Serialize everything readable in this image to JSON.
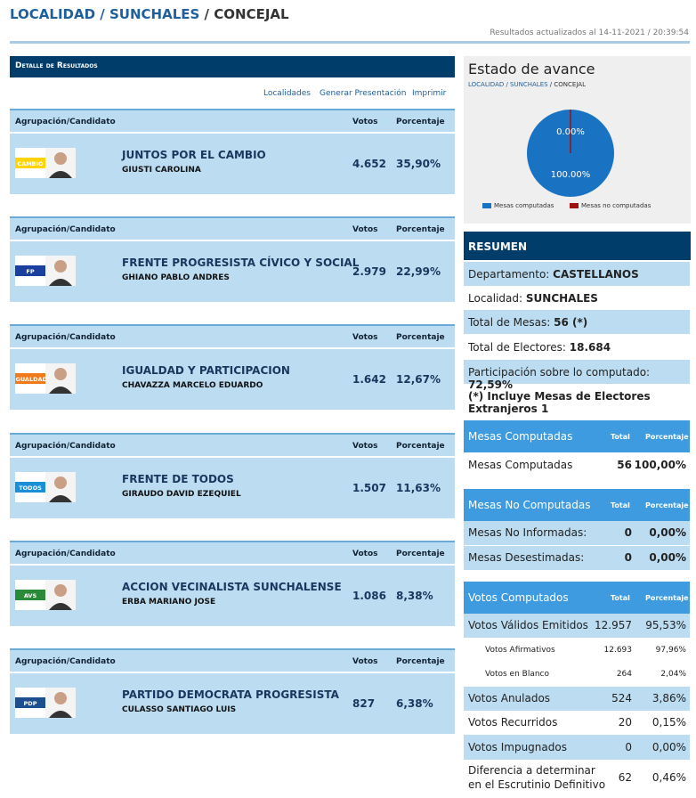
{
  "breadcrumb": {
    "part1": "LOCALIDAD",
    "sep1": " / ",
    "part2": "SUNCHALES",
    "sep2": " / ",
    "current": "CONCEJAL"
  },
  "updated": "Resultados actualizados al 14-11-2021 / 20:39:54",
  "detail": {
    "header": "Detalle de Resultados",
    "links": [
      "Localidades",
      "Generar Presentación",
      "Imprimir"
    ],
    "col_group": "Agrupación/Candidato",
    "col_votes": "Votos",
    "col_pct": "Porcentaje",
    "candidates": [
      {
        "party": "JUNTOS POR EL CAMBIO",
        "candidate": "GIUSTI CAROLINA",
        "votes": "4.652",
        "pct": "35,90%",
        "logo_text": "CAMBIO",
        "logo_color": "#ffd400"
      },
      {
        "party": "FRENTE PROGRESISTA CÍVICO Y SOCIAL",
        "candidate": "GHIANO PABLO ANDRES",
        "votes": "2.979",
        "pct": "22,99%",
        "logo_text": "FP",
        "logo_color": "#1a3f9c"
      },
      {
        "party": "IGUALDAD Y PARTICIPACION",
        "candidate": "CHAVAZZA MARCELO EDUARDO",
        "votes": "1.642",
        "pct": "12,67%",
        "logo_text": "IGUALDAD",
        "logo_color": "#f07a1a"
      },
      {
        "party": "FRENTE DE TODOS",
        "candidate": "GIRAUDO DAVID EZEQUIEL",
        "votes": "1.507",
        "pct": "11,63%",
        "logo_text": "TODOS",
        "logo_color": "#1a8fd8"
      },
      {
        "party": "ACCION VECINALISTA SUNCHALENSE",
        "candidate": "ERBA MARIANO JOSE",
        "votes": "1.086",
        "pct": "8,38%",
        "logo_text": "AVS",
        "logo_color": "#2a8a3a"
      },
      {
        "party": "PARTIDO DEMOCRATA PROGRESISTA",
        "candidate": "CULASSO SANTIAGO LUIS",
        "votes": "827",
        "pct": "6,38%",
        "logo_text": "PDP",
        "logo_color": "#1d4f8f"
      }
    ]
  },
  "avance": {
    "title": "Estado de avance",
    "crumb_link": "LOCALIDAD / SUNCHALES",
    "crumb_sep": " / ",
    "crumb_current": "CONCEJAL",
    "label_no": "0.00%",
    "label_yes": "100.00%",
    "legend_yes": "Mesas computadas",
    "legend_no": "Mesas no computadas",
    "color_yes": "#1a73c2",
    "color_no": "#a01010"
  },
  "resumen": {
    "header": "RESUMEN",
    "departamento_label": "Departamento: ",
    "departamento": "CASTELLANOS",
    "localidad_label": "Localidad: ",
    "localidad": "SUNCHALES",
    "mesas_label": "Total de Mesas: ",
    "mesas": "56 (*)",
    "electores_label": "Total de Electores: ",
    "electores": "18.684",
    "participacion_label": "Participación sobre lo computado: ",
    "participacion": "72,59%",
    "nota": "(*) Incluye Mesas de Electores Extranjeros 1"
  },
  "tables": {
    "col_total": "Total",
    "col_pct": "Porcentaje",
    "computadas": {
      "title": "Mesas Computadas",
      "rows": [
        {
          "label": "Mesas Computadas",
          "total": "56",
          "pct": "100,00%"
        }
      ]
    },
    "no_computadas": {
      "title": "Mesas No Computadas",
      "rows": [
        {
          "label": "Mesas No Informadas:",
          "total": "0",
          "pct": "0,00%"
        },
        {
          "label": "Mesas Desestimadas:",
          "total": "0",
          "pct": "0,00%"
        }
      ]
    },
    "votos": {
      "title": "Votos Computados",
      "rows": [
        {
          "label": "Votos Válidos Emitidos",
          "total": "12.957",
          "pct": "95,53%"
        },
        {
          "label": "Votos Afirmativos",
          "total": "12.693",
          "pct": "97,96%"
        },
        {
          "label": "Votos en Blanco",
          "total": "264",
          "pct": "2,04%"
        },
        {
          "label": "Votos Anulados",
          "total": "524",
          "pct": "3,86%"
        },
        {
          "label": "Votos Recurridos",
          "total": "20",
          "pct": "0,15%"
        },
        {
          "label": "Votos Impugnados",
          "total": "0",
          "pct": "0,00%"
        },
        {
          "label": "Diferencia a determinar",
          "label2": "en el Escrutinio Definitivo",
          "total": "62",
          "pct": "0,46%"
        }
      ]
    }
  }
}
